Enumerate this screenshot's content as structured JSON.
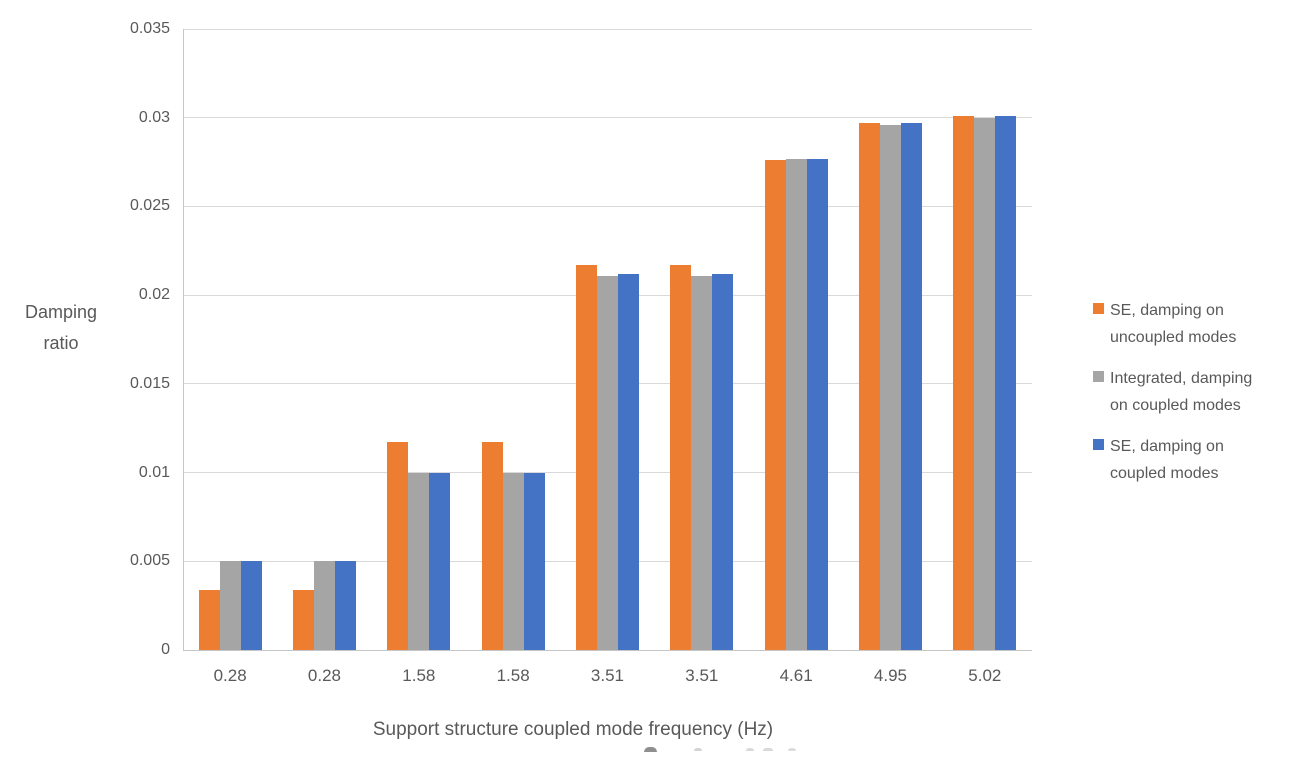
{
  "chart_data": {
    "type": "bar",
    "title": "",
    "categories": [
      "0.28",
      "0.28",
      "1.58",
      "1.58",
      "3.51",
      "3.51",
      "4.61",
      "4.95",
      "5.02"
    ],
    "series": [
      {
        "name": "SE, damping on uncoupled modes",
        "legend_lines": [
          "SE, damping on",
          "uncoupled modes"
        ],
        "color": "#ED7D31",
        "values": [
          0.0034,
          0.0034,
          0.0117,
          0.0117,
          0.0217,
          0.0217,
          0.0276,
          0.0297,
          0.0301
        ]
      },
      {
        "name": "Integrated, damping on coupled modes",
        "legend_lines": [
          "Integrated, damping",
          "on coupled modes"
        ],
        "color": "#A5A5A5",
        "values": [
          0.005,
          0.005,
          0.01,
          0.01,
          0.0211,
          0.0211,
          0.0277,
          0.0296,
          0.03
        ]
      },
      {
        "name": "SE, damping on coupled modes",
        "legend_lines": [
          "SE, damping on",
          "coupled modes"
        ],
        "color": "#4472C4",
        "values": [
          0.005,
          0.005,
          0.01,
          0.01,
          0.0212,
          0.0212,
          0.0277,
          0.0297,
          0.0301
        ]
      }
    ],
    "xlabel": "Support structure coupled mode frequency (Hz)",
    "ylabel": "Damping ratio",
    "ylabel_lines": [
      "Damping",
      "ratio"
    ],
    "ylim": [
      0,
      0.035
    ],
    "ytick_step": 0.005,
    "y_ticks": [
      "0",
      "0.005",
      "0.01",
      "0.015",
      "0.02",
      "0.025",
      "0.03",
      "0.035"
    ],
    "grid": true,
    "legend_position": "right"
  },
  "style": {
    "text_color": "#595959",
    "gridline_color": "#D9D9D9",
    "axis_color": "#C6C6C6",
    "background": "#FFFFFF"
  }
}
